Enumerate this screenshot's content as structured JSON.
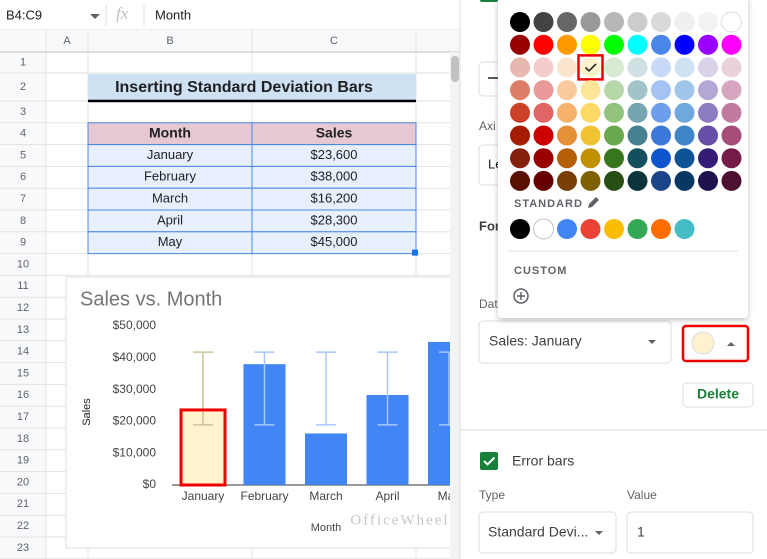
{
  "toolbar": {
    "name_box": "B4:C9",
    "fx": "fx",
    "formula": "Month"
  },
  "columns": [
    "A",
    "B",
    "C"
  ],
  "row_numbers": [
    1,
    2,
    3,
    4,
    5,
    6,
    7,
    8,
    9,
    10,
    11,
    12,
    13,
    14,
    15,
    16,
    17,
    18,
    19,
    20,
    21,
    22,
    23
  ],
  "sheet": {
    "title": "Inserting Standard Deviation Bars",
    "table": {
      "header": [
        "Month",
        "Sales"
      ],
      "rows": [
        [
          "January",
          "$23,600"
        ],
        [
          "February",
          "$38,000"
        ],
        [
          "March",
          "$16,200"
        ],
        [
          "April",
          "$28,300"
        ],
        [
          "May",
          "$45,000"
        ]
      ]
    }
  },
  "chart_data": {
    "type": "bar",
    "title": "Sales vs. Month",
    "y_label": "Sales",
    "x_label": "Month",
    "categories": [
      "January",
      "February",
      "March",
      "April",
      "May"
    ],
    "values": [
      23600,
      38000,
      16200,
      28300,
      45000
    ],
    "colors": [
      "#fff2cc",
      "#4285f4",
      "#4285f4",
      "#4285f4",
      "#4285f4"
    ],
    "error_colors": [
      "#cfc29a",
      "#a8c7fa",
      "#a8c7fa",
      "#a8c7fa",
      "#a8c7fa"
    ],
    "error_bars": {
      "low": 18900,
      "high": 41800
    },
    "ylim": [
      0,
      50000
    ],
    "yticks": [
      {
        "value": 0,
        "label": "$0"
      },
      {
        "value": 10000,
        "label": "$10,000"
      },
      {
        "value": 20000,
        "label": "$20,000"
      },
      {
        "value": 30000,
        "label": "$30,000"
      },
      {
        "value": 40000,
        "label": "$40,000"
      },
      {
        "value": 50000,
        "label": "$50,000"
      }
    ]
  },
  "watermark": "OfficeWheel",
  "panel": {
    "axis_label": "Axi",
    "legend_value": "Le",
    "format_label": "For",
    "data_label": "Dat",
    "series_select": "Sales: January",
    "series_color": "#fff2cc",
    "delete": "Delete",
    "error_bars_label": "Error bars",
    "type_label": "Type",
    "value_label": "Value",
    "type_value": "Standard Devi...",
    "value_value": "1"
  },
  "picker": {
    "palette": [
      [
        "#000000",
        "#434343",
        "#666666",
        "#999999",
        "#b7b7b7",
        "#cccccc",
        "#d9d9d9",
        "#efefef",
        "#f3f3f3",
        "#ffffff"
      ],
      [
        "#980000",
        "#ff0000",
        "#ff9900",
        "#ffff00",
        "#00ff00",
        "#00ffff",
        "#4a86e8",
        "#0000ff",
        "#9900ff",
        "#ff00ff"
      ],
      [
        "#e6b8af",
        "#f4cccc",
        "#fce5cd",
        "#fff2cc",
        "#d9ead3",
        "#d0e0e3",
        "#c9daf8",
        "#cfe2f3",
        "#d9d2e9",
        "#ead1dc"
      ],
      [
        "#dd7e6b",
        "#ea9999",
        "#f9cb9c",
        "#ffe599",
        "#b6d7a8",
        "#a2c4c9",
        "#a4c2f4",
        "#9fc5e8",
        "#b4a7d6",
        "#d5a6bd"
      ],
      [
        "#cc4125",
        "#e06666",
        "#f6b26b",
        "#ffd966",
        "#93c47d",
        "#76a5af",
        "#6d9eeb",
        "#6fa8dc",
        "#8e7cc3",
        "#c27ba0"
      ],
      [
        "#a61c00",
        "#cc0000",
        "#e69138",
        "#f1c232",
        "#6aa84f",
        "#45818e",
        "#3c78d8",
        "#3d85c6",
        "#674ea7",
        "#a64d79"
      ],
      [
        "#85200c",
        "#990000",
        "#b45f06",
        "#bf9000",
        "#38761d",
        "#134f5c",
        "#1155cc",
        "#0b5394",
        "#351c75",
        "#741b47"
      ],
      [
        "#5b0f00",
        "#660000",
        "#783f04",
        "#7f6000",
        "#274e13",
        "#0c343d",
        "#1c4587",
        "#073763",
        "#20124d",
        "#4c1130"
      ]
    ],
    "standard_label": "STANDARD",
    "standard": [
      "#000000",
      "#ffffff",
      "#4285f4",
      "#ea4335",
      "#fbbc04",
      "#34a853",
      "#ff6d01",
      "#46bdc6"
    ],
    "custom_label": "CUSTOM"
  }
}
